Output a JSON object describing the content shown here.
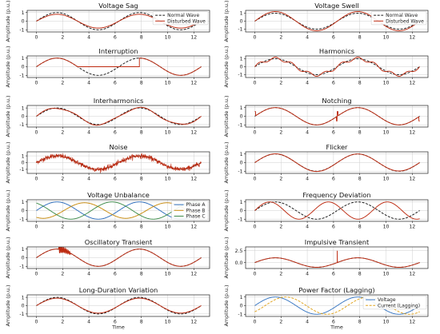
{
  "colors": {
    "normal": "#1a1a1a",
    "disturbed": "#bd2a10",
    "phase_a": "#2f6fbd",
    "phase_b": "#c78a0c",
    "phase_c": "#3d8b4a",
    "voltage": "#3a78c3",
    "current": "#e0a21a"
  },
  "chart_data": [
    {
      "type": "line",
      "title": "Voltage Sag",
      "xlabel": "",
      "ylabel": "Amplitude (p.u.)",
      "xlim": [
        -0.7,
        13.2
      ],
      "ylim": [
        -1.25,
        1.25
      ],
      "xticks": [
        "0",
        "2",
        "4",
        "6",
        "8",
        "10",
        "12"
      ],
      "yticks": [
        "-1",
        "0",
        "1"
      ],
      "grid": true,
      "legend": "upper right",
      "series": [
        {
          "name": "Normal Wave",
          "kind": "sine",
          "amplitude": 1.0,
          "style": "dashed",
          "color": "normal"
        },
        {
          "name": "Disturbed Wave",
          "kind": "sine",
          "amplitude": 0.8,
          "style": "solid",
          "color": "disturbed"
        }
      ]
    },
    {
      "type": "line",
      "title": "Voltage Swell",
      "xlabel": "",
      "ylabel": "Amplitude (p.u.)",
      "xlim": [
        -0.7,
        13.2
      ],
      "ylim": [
        -1.35,
        1.35
      ],
      "xticks": [
        "0",
        "2",
        "4",
        "6",
        "8",
        "10",
        "12"
      ],
      "yticks": [
        "-1",
        "0",
        "1"
      ],
      "grid": true,
      "legend": "upper right",
      "series": [
        {
          "name": "Normal Wave",
          "kind": "sine",
          "amplitude": 1.0,
          "style": "dashed",
          "color": "normal"
        },
        {
          "name": "Disturbed Wave",
          "kind": "sine",
          "amplitude": 1.2,
          "style": "solid",
          "color": "disturbed"
        }
      ]
    },
    {
      "type": "line",
      "title": "Interruption",
      "xlabel": "",
      "ylabel": "Amplitude (p.u.)",
      "xlim": [
        -0.7,
        13.2
      ],
      "ylim": [
        -1.25,
        1.25
      ],
      "xticks": [
        "0",
        "2",
        "4",
        "6",
        "8",
        "10",
        "12"
      ],
      "yticks": [
        "-1",
        "0",
        "1"
      ],
      "grid": true,
      "legend": "none",
      "series": [
        {
          "kind": "sine",
          "amplitude": 1.0,
          "style": "dashed",
          "color": "normal"
        },
        {
          "kind": "interruption",
          "amplitude": 1.0,
          "interruption_start": 3.14,
          "interruption_end": 7.85,
          "style": "solid",
          "color": "disturbed"
        }
      ]
    },
    {
      "type": "line",
      "title": "Harmonics",
      "xlabel": "",
      "ylabel": "Amplitude (p.u.)",
      "xlim": [
        -0.7,
        13.2
      ],
      "ylim": [
        -1.35,
        1.35
      ],
      "xticks": [
        "0",
        "2",
        "4",
        "6",
        "8",
        "10",
        "12"
      ],
      "yticks": [
        "-1",
        "0",
        "1"
      ],
      "grid": true,
      "legend": "none",
      "series": [
        {
          "kind": "sine",
          "amplitude": 1.0,
          "style": "dashed",
          "color": "normal"
        },
        {
          "kind": "harmonics",
          "amplitude": 1.0,
          "harmonic_order": 5,
          "harmonic_amplitude": 0.2,
          "style": "solid",
          "color": "disturbed"
        }
      ]
    },
    {
      "type": "line",
      "title": "Interharmonics",
      "xlabel": "",
      "ylabel": "Amplitude (p.u.)",
      "xlim": [
        -0.7,
        13.2
      ],
      "ylim": [
        -1.3,
        1.3
      ],
      "xticks": [
        "0",
        "2",
        "4",
        "6",
        "8",
        "10",
        "12"
      ],
      "yticks": [
        "-1",
        "0",
        "1"
      ],
      "grid": true,
      "legend": "none",
      "series": [
        {
          "kind": "sine",
          "amplitude": 1.0,
          "style": "dashed",
          "color": "normal"
        },
        {
          "kind": "interharmonics",
          "amplitude": 1.0,
          "interharmonic_frequency": 2.5,
          "interharmonic_amplitude": 0.1,
          "style": "solid",
          "color": "disturbed"
        }
      ]
    },
    {
      "type": "line",
      "title": "Notching",
      "xlabel": "",
      "ylabel": "Amplitude (p.u.)",
      "xlim": [
        -0.7,
        13.2
      ],
      "ylim": [
        -1.25,
        1.25
      ],
      "xticks": [
        "0",
        "2",
        "4",
        "6",
        "8",
        "10",
        "12"
      ],
      "yticks": [
        "-1",
        "0",
        "1"
      ],
      "grid": true,
      "legend": "none",
      "series": [
        {
          "kind": "sine",
          "amplitude": 1.0,
          "style": "dashed",
          "color": "normal"
        },
        {
          "kind": "notching",
          "amplitude": 1.0,
          "notch_times": [
            0.0,
            6.28,
            12.57
          ],
          "notch_width": 0.12,
          "style": "solid",
          "color": "disturbed"
        }
      ]
    },
    {
      "type": "line",
      "title": "Noise",
      "xlabel": "",
      "ylabel": "Amplitude (p.u.)",
      "xlim": [
        -0.7,
        13.2
      ],
      "ylim": [
        -1.6,
        1.6
      ],
      "xticks": [
        "0",
        "2",
        "4",
        "6",
        "8",
        "10",
        "12"
      ],
      "yticks": [
        "-1",
        "0",
        "1"
      ],
      "grid": true,
      "legend": "none",
      "series": [
        {
          "kind": "sine",
          "amplitude": 1.0,
          "style": "dashed",
          "color": "normal"
        },
        {
          "kind": "noise",
          "amplitude": 1.0,
          "noise_amplitude": 0.18,
          "style": "solid",
          "color": "disturbed"
        }
      ]
    },
    {
      "type": "line",
      "title": "Flicker",
      "xlabel": "",
      "ylabel": "Amplitude (p.u.)",
      "xlim": [
        -0.7,
        13.2
      ],
      "ylim": [
        -1.25,
        1.25
      ],
      "xticks": [
        "0",
        "2",
        "4",
        "6",
        "8",
        "10",
        "12"
      ],
      "yticks": [
        "-1",
        "0",
        "1"
      ],
      "grid": true,
      "legend": "none",
      "series": [
        {
          "kind": "sine",
          "amplitude": 1.0,
          "style": "dashed",
          "color": "normal"
        },
        {
          "kind": "flicker",
          "amplitude": 1.0,
          "flicker_depth": 0.03,
          "style": "solid",
          "color": "disturbed"
        }
      ]
    },
    {
      "type": "line",
      "title": "Voltage Unbalance",
      "xlabel": "",
      "ylabel": "Amplitude (p.u.)",
      "xlim": [
        -0.7,
        13.2
      ],
      "ylim": [
        -1.25,
        1.25
      ],
      "xticks": [
        "0",
        "2",
        "4",
        "6",
        "8",
        "10",
        "12"
      ],
      "yticks": [
        "-1",
        "0",
        "1"
      ],
      "grid": true,
      "legend": "upper right",
      "series": [
        {
          "name": "Phase A",
          "kind": "sine",
          "amplitude": 1.0,
          "phase_deg": 0,
          "style": "solid",
          "color": "phase_a"
        },
        {
          "name": "Phase B",
          "kind": "sine",
          "amplitude": 0.9,
          "phase_deg": -120,
          "style": "solid",
          "color": "phase_b"
        },
        {
          "name": "Phase C",
          "kind": "sine",
          "amplitude": 1.0,
          "phase_deg": 120,
          "style": "solid",
          "color": "phase_c"
        }
      ]
    },
    {
      "type": "line",
      "title": "Frequency Deviation",
      "xlabel": "",
      "ylabel": "Amplitude (p.u.)",
      "xlim": [
        -0.7,
        13.2
      ],
      "ylim": [
        -1.25,
        1.25
      ],
      "xticks": [
        "0",
        "2",
        "4",
        "6",
        "8",
        "10",
        "12"
      ],
      "yticks": [
        "-1",
        "0",
        "1"
      ],
      "grid": true,
      "legend": "none",
      "series": [
        {
          "kind": "sine",
          "amplitude": 1.0,
          "style": "dashed",
          "color": "normal"
        },
        {
          "kind": "sine",
          "amplitude": 1.0,
          "frequency": 1.4,
          "style": "solid",
          "color": "disturbed"
        }
      ]
    },
    {
      "type": "line",
      "title": "Oscillatory Transient",
      "xlabel": "",
      "ylabel": "Amplitude (p.u.)",
      "xlim": [
        -0.7,
        13.2
      ],
      "ylim": [
        -1.25,
        1.25
      ],
      "xticks": [
        "0",
        "2",
        "4",
        "6",
        "8",
        "10",
        "12"
      ],
      "yticks": [
        "-1",
        "0",
        "1"
      ],
      "grid": true,
      "legend": "none",
      "series": [
        {
          "kind": "sine",
          "amplitude": 1.0,
          "style": "dashed",
          "color": "normal"
        },
        {
          "kind": "oscillatory",
          "amplitude": 1.0,
          "transient_start": 1.7,
          "transient_end": 2.6,
          "transient_amplitude": 0.5,
          "style": "solid",
          "color": "disturbed"
        }
      ]
    },
    {
      "type": "line",
      "title": "Impulsive Transient",
      "xlabel": "",
      "ylabel": "Amplitude (p.u.)",
      "xlim": [
        -0.7,
        13.2
      ],
      "ylim": [
        -1.25,
        3.3
      ],
      "xticks": [
        "0",
        "2",
        "4",
        "6",
        "8",
        "10",
        "12"
      ],
      "yticks": [
        "0.0",
        "2.5"
      ],
      "grid": true,
      "legend": "none",
      "series": [
        {
          "kind": "sine",
          "amplitude": 1.0,
          "style": "dashed",
          "color": "normal"
        },
        {
          "kind": "impulse",
          "amplitude": 1.0,
          "impulse_time": 6.28,
          "impulse_peak": 2.5,
          "style": "solid",
          "color": "disturbed"
        }
      ]
    },
    {
      "type": "line",
      "title": "Long-Duration Variation",
      "xlabel": "Time",
      "ylabel": "Amplitude (p.u.)",
      "xlim": [
        -0.7,
        13.2
      ],
      "ylim": [
        -1.3,
        1.3
      ],
      "xticks": [
        "0",
        "2",
        "4",
        "6",
        "8",
        "10",
        "12"
      ],
      "yticks": [
        "-1",
        "0",
        "1"
      ],
      "grid": true,
      "legend": "none",
      "series": [
        {
          "kind": "sine",
          "amplitude": 1.0,
          "style": "dashed",
          "color": "normal"
        },
        {
          "kind": "sine",
          "amplitude": 0.9,
          "style": "solid",
          "color": "disturbed"
        }
      ]
    },
    {
      "type": "line",
      "title": "Power Factor (Lagging)",
      "xlabel": "Time",
      "ylabel": "Amplitude (p.u.)",
      "xlim": [
        -0.7,
        13.2
      ],
      "ylim": [
        -1.25,
        1.25
      ],
      "xticks": [
        "0",
        "2",
        "4",
        "6",
        "8",
        "10",
        "12"
      ],
      "yticks": [
        "-1",
        "0",
        "1"
      ],
      "grid": true,
      "legend": "upper right",
      "series": [
        {
          "name": "Voltage",
          "kind": "sine",
          "amplitude": 1.0,
          "phase_deg": 0,
          "style": "solid",
          "color": "voltage"
        },
        {
          "name": "Current (Lagging)",
          "kind": "sine",
          "amplitude": 1.0,
          "phase_deg": -45,
          "style": "dashed",
          "color": "current"
        }
      ]
    }
  ]
}
